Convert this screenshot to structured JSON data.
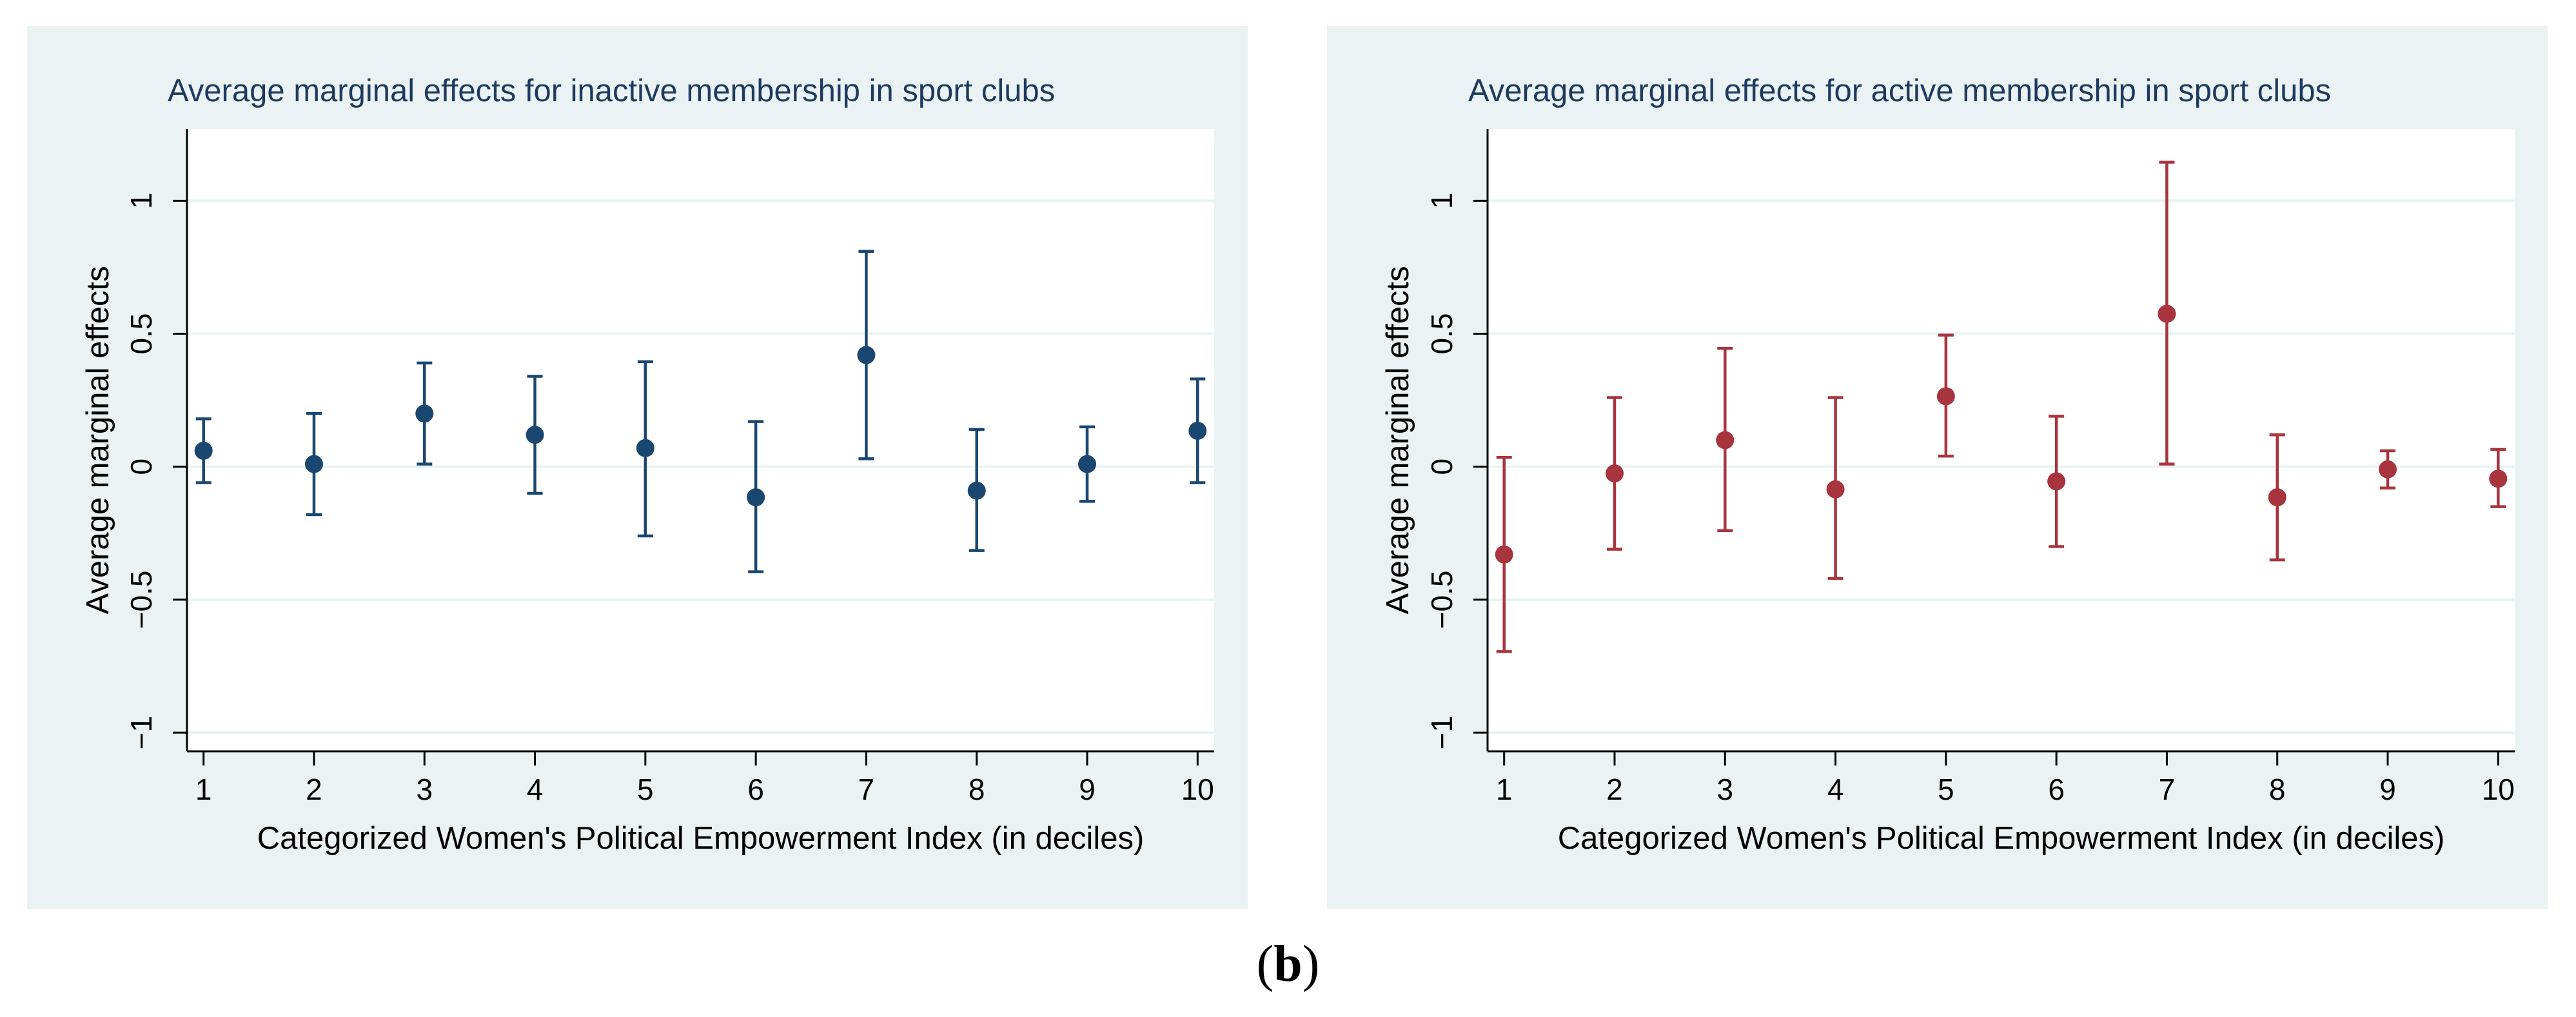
{
  "figure_label": "b",
  "chart_data": [
    {
      "type": "scatter",
      "title": "Average marginal effects for inactive membership in sport clubs",
      "xlabel": "Categorized Women's Political Empowerment Index (in deciles)",
      "ylabel": "Average marginal effects",
      "x": [
        1,
        2,
        3,
        4,
        5,
        6,
        7,
        8,
        9,
        10
      ],
      "xticks": [
        "1",
        "2",
        "3",
        "4",
        "5",
        "6",
        "7",
        "8",
        "9",
        "10"
      ],
      "yticks": [
        "−1",
        "−0.5",
        "0",
        "0.5",
        "1"
      ],
      "yticks_values": [
        -1,
        -0.5,
        0,
        0.5,
        1
      ],
      "estimate": [
        0.06,
        0.01,
        0.2,
        0.12,
        0.07,
        -0.115,
        0.42,
        -0.09,
        0.01,
        0.135
      ],
      "ci_lower": [
        -0.06,
        -0.18,
        0.01,
        -0.1,
        -0.26,
        -0.395,
        0.03,
        -0.315,
        -0.13,
        -0.06
      ],
      "ci_upper": [
        0.18,
        0.2,
        0.39,
        0.34,
        0.395,
        0.17,
        0.81,
        0.14,
        0.15,
        0.33
      ],
      "ylim": [
        -1.07,
        1.27
      ],
      "xlim": [
        0.85,
        10.15
      ],
      "grid": true,
      "color": "#1a476f"
    },
    {
      "type": "scatter",
      "title": "Average marginal effects for active membership in sport clubs",
      "xlabel": "Categorized Women's Political Empowerment Index (in deciles)",
      "ylabel": "Average marginal effects",
      "x": [
        1,
        2,
        3,
        4,
        5,
        6,
        7,
        8,
        9,
        10
      ],
      "xticks": [
        "1",
        "2",
        "3",
        "4",
        "5",
        "6",
        "7",
        "8",
        "9",
        "10"
      ],
      "yticks": [
        "−1",
        "−0.5",
        "0",
        "0.5",
        "1"
      ],
      "yticks_values": [
        -1,
        -0.5,
        0,
        0.5,
        1
      ],
      "estimate": [
        -0.33,
        -0.025,
        0.1,
        -0.085,
        0.265,
        -0.055,
        0.575,
        -0.115,
        -0.01,
        -0.045
      ],
      "ci_lower": [
        -0.695,
        -0.31,
        -0.24,
        -0.42,
        0.04,
        -0.3,
        0.01,
        -0.35,
        -0.08,
        -0.15
      ],
      "ci_upper": [
        0.035,
        0.26,
        0.445,
        0.26,
        0.495,
        0.19,
        1.145,
        0.12,
        0.06,
        0.065
      ],
      "ylim": [
        -1.07,
        1.27
      ],
      "xlim": [
        0.85,
        10.15
      ],
      "grid": true,
      "color": "#a8343d"
    }
  ]
}
